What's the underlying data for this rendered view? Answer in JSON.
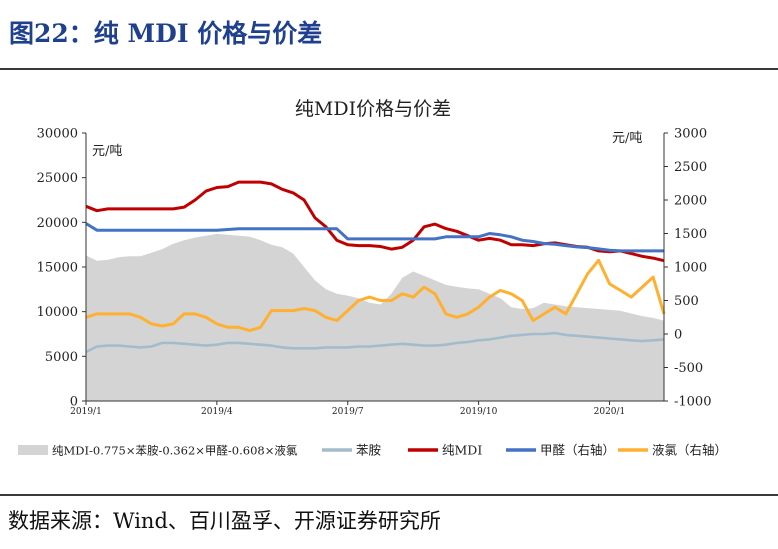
{
  "figure_title": "图22：纯 MDI 价格与价差",
  "source_note": "数据来源：Wind、百川盈孚、开源证券研究所",
  "chart_data": {
    "type": "line",
    "title": "纯MDI价格与价差",
    "left_unit": "元/吨",
    "right_unit": "元/吨",
    "left_axis": {
      "min": 0,
      "max": 30000,
      "ticks": [
        "0",
        "5000",
        "10000",
        "15000",
        "20000",
        "25000",
        "30000"
      ]
    },
    "right_axis": {
      "min": -1000,
      "max": 3000,
      "ticks": [
        "-1000",
        "-500",
        "0",
        "500",
        "1000",
        "1500",
        "2000",
        "2500",
        "3000"
      ]
    },
    "x_ticks": [
      "2019/1",
      "2019/4",
      "2019/7",
      "2019/10",
      "2020/1"
    ],
    "x_tick_index": [
      0,
      12,
      24,
      36,
      48
    ],
    "colors": {
      "spread": "#d4d4d4",
      "aniline": "#a3bccb",
      "mdi": "#c00000",
      "methanal": "#4472c4",
      "chlorine": "#ffb031"
    },
    "legend": [
      "纯MDI-0.775×苯胺-0.362×甲醛-0.608×液氯",
      "苯胺",
      "纯MDI",
      "甲醛（右轴）",
      "液氯（右轴）"
    ],
    "series": [
      {
        "name": "纯MDI-0.775×苯胺-0.362×甲醛-0.608×液氯",
        "axis": "left",
        "style": "area",
        "values": [
          16300,
          15700,
          15800,
          16100,
          16200,
          16200,
          16600,
          17000,
          17600,
          18000,
          18300,
          18500,
          18700,
          18600,
          18500,
          18400,
          18000,
          17500,
          17200,
          16500,
          15000,
          13500,
          12500,
          12000,
          11800,
          11500,
          11000,
          10800,
          12000,
          13800,
          14500,
          14000,
          13500,
          13000,
          12800,
          12600,
          12500,
          12000,
          11500,
          10500,
          10300,
          10400,
          11000,
          10800,
          10600,
          10500,
          10400,
          10300,
          10200,
          10100,
          9800,
          9500,
          9300,
          9000
        ]
      },
      {
        "name": "苯胺",
        "axis": "left",
        "style": "line",
        "values": [
          5500,
          6100,
          6200,
          6200,
          6100,
          6000,
          6100,
          6500,
          6500,
          6400,
          6300,
          6200,
          6300,
          6500,
          6500,
          6400,
          6300,
          6200,
          6000,
          5900,
          5900,
          5900,
          6000,
          6000,
          6000,
          6100,
          6100,
          6200,
          6300,
          6400,
          6300,
          6200,
          6200,
          6300,
          6500,
          6600,
          6800,
          6900,
          7100,
          7300,
          7400,
          7500,
          7500,
          7600,
          7400,
          7300,
          7200,
          7100,
          7000,
          6900,
          6800,
          6700,
          6800,
          6900
        ]
      },
      {
        "name": "纯MDI",
        "axis": "left",
        "style": "line",
        "values": [
          21800,
          21300,
          21500,
          21500,
          21500,
          21500,
          21500,
          21500,
          21500,
          21700,
          22500,
          23500,
          23900,
          24000,
          24500,
          24500,
          24500,
          24300,
          23700,
          23300,
          22500,
          20500,
          19500,
          18000,
          17500,
          17400,
          17400,
          17300,
          17000,
          17200,
          18000,
          19500,
          19800,
          19300,
          19000,
          18500,
          18000,
          18200,
          18000,
          17500,
          17500,
          17400,
          17600,
          17700,
          17500,
          17300,
          17200,
          16800,
          16700,
          16800,
          16500,
          16200,
          16000,
          15700
        ]
      },
      {
        "name": "甲醛（右轴）",
        "axis": "right",
        "style": "line",
        "values": [
          1650,
          1550,
          1550,
          1550,
          1550,
          1550,
          1550,
          1550,
          1550,
          1550,
          1550,
          1550,
          1550,
          1560,
          1570,
          1570,
          1570,
          1570,
          1570,
          1570,
          1570,
          1570,
          1570,
          1570,
          1420,
          1420,
          1420,
          1420,
          1420,
          1420,
          1420,
          1420,
          1420,
          1450,
          1450,
          1450,
          1450,
          1500,
          1480,
          1450,
          1400,
          1380,
          1350,
          1340,
          1320,
          1300,
          1290,
          1270,
          1250,
          1240,
          1240,
          1240,
          1240,
          1240
        ]
      },
      {
        "name": "液氯（右轴）",
        "axis": "right",
        "style": "line",
        "values": [
          250,
          300,
          300,
          300,
          300,
          250,
          150,
          120,
          150,
          300,
          300,
          250,
          150,
          100,
          100,
          50,
          100,
          350,
          350,
          350,
          380,
          350,
          250,
          200,
          350,
          500,
          550,
          500,
          500,
          600,
          550,
          700,
          600,
          300,
          250,
          300,
          400,
          550,
          650,
          600,
          500,
          200,
          300,
          400,
          300,
          600,
          900,
          1100,
          750,
          650,
          550,
          700,
          850,
          300
        ]
      }
    ]
  }
}
